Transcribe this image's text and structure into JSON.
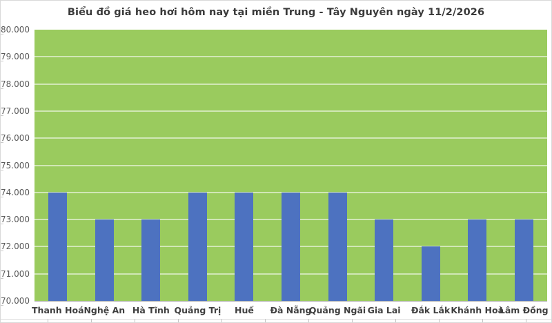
{
  "chart_data": {
    "type": "bar",
    "title": "Biểu đồ giá heo hơi hôm nay tại miền Trung - Tây Nguyên ngày 11/2/2026",
    "categories": [
      "Thanh Hoá",
      "Nghệ An",
      "Hà Tĩnh",
      "Quảng Trị",
      "Huế",
      "Đà Nẵng",
      "Quảng Ngãi",
      "Gia Lai",
      "Đắk Lắk",
      "Khánh Hoà",
      "Lâm Đồng"
    ],
    "values": [
      74000,
      73000,
      73000,
      74000,
      74000,
      74000,
      74000,
      73000,
      72000,
      73000,
      73000
    ],
    "y_tick_labels": [
      "70.000",
      "71.000",
      "72.000",
      "73.000",
      "74.000",
      "75.000",
      "76.000",
      "77.000",
      "78.000",
      "79.000",
      "80.000"
    ],
    "ylim": [
      70000,
      80000
    ],
    "y_step": 1000,
    "xlabel": "",
    "ylabel": "",
    "grid": true,
    "legend": false,
    "colors": {
      "bar": "#4d72c0",
      "plot_background": "#9acb5e",
      "gridline": "rgba(255,255,255,0.55)",
      "axis_line": "#b3b3b3",
      "frame_border": "#d9d9d9",
      "title_text": "#3a3a3a",
      "y_label_text": "#595959",
      "x_label_text": "#3f3f3f"
    }
  }
}
